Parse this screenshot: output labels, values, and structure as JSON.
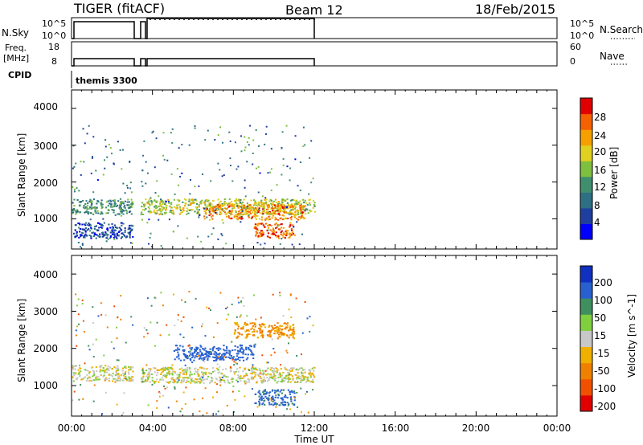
{
  "header": {
    "radar": "TIGER (fitACF)",
    "beam": "Beam 12",
    "date": "18/Feb/2015"
  },
  "panels": {
    "nsky": {
      "label": "N.Sky",
      "right_label": "N.Search",
      "ticks_left": [
        "10^5",
        "10^0"
      ],
      "ticks_right": [
        "10^5",
        "10^0"
      ]
    },
    "freq": {
      "label_line1": "Freq.",
      "label_line2": "[MHz]",
      "right_label": "Nave",
      "ticks_left": [
        "18",
        "8"
      ],
      "ticks_right": [
        "60",
        "0"
      ]
    },
    "cpid": {
      "label": "CPID",
      "value": "themis 3300"
    }
  },
  "axes": {
    "ylabel": "Slant Range [km]",
    "xlabel": "Time UT",
    "y_ticks": [
      "4000",
      "3000",
      "2000",
      "1000"
    ],
    "x_ticks": [
      "00:00",
      "04:00",
      "08:00",
      "12:00",
      "16:00",
      "20:00",
      "00:00"
    ]
  },
  "colorbars": {
    "power": {
      "label": "Power [dB]",
      "ticks": [
        "28",
        "24",
        "20",
        "16",
        "12",
        "8",
        "4"
      ],
      "colors": [
        "#0000ff",
        "#1f3f9f",
        "#2e6f84",
        "#3f8f6f",
        "#7fbf3f",
        "#e0d020",
        "#f5a000",
        "#f56000",
        "#e00000"
      ]
    },
    "velocity": {
      "label": "Velocity [m s^-1]",
      "ticks": [
        "200",
        "100",
        "50",
        "15",
        "-15",
        "-50",
        "-100",
        "-200"
      ],
      "colors": [
        "#1030c0",
        "#2860d0",
        "#3f8f5f",
        "#7fcf3f",
        "#c8c8c8",
        "#f0b000",
        "#f08000",
        "#f05000",
        "#e00000"
      ]
    }
  },
  "chart_data": {
    "type": "heatmap",
    "xlim": [
      "00:00",
      "24:00"
    ],
    "ylim": [
      180,
      4500
    ],
    "data_coverage_hours": [
      [
        0.0,
        3.0
      ],
      [
        3.4,
        12.0
      ]
    ],
    "power_features": [
      {
        "t_start": 0.0,
        "t_end": 3.0,
        "range_km": 1350,
        "power_db": 12
      },
      {
        "t_start": 3.4,
        "t_end": 12.0,
        "range_km": 1350,
        "power_db": 18
      },
      {
        "t_start": 6.5,
        "t_end": 11.5,
        "range_km": 1200,
        "power_db": 24
      },
      {
        "t_start": 9.0,
        "t_end": 11.0,
        "range_km": 700,
        "power_db": 26
      },
      {
        "t_start": 0.0,
        "t_end": 3.0,
        "range_km": 700,
        "power_db": 6
      }
    ],
    "velocity_features": [
      {
        "t_start": 0.0,
        "t_end": 3.0,
        "range_km": 1350,
        "velocity_ms": 0
      },
      {
        "t_start": 3.4,
        "t_end": 12.0,
        "range_km": 1300,
        "velocity_ms": 0
      },
      {
        "t_start": 5.0,
        "t_end": 9.0,
        "range_km": 1900,
        "velocity_ms": 150
      },
      {
        "t_start": 8.0,
        "t_end": 11.0,
        "range_km": 2500,
        "velocity_ms": -60
      },
      {
        "t_start": 9.0,
        "t_end": 11.0,
        "range_km": 700,
        "velocity_ms": 120
      }
    ]
  }
}
